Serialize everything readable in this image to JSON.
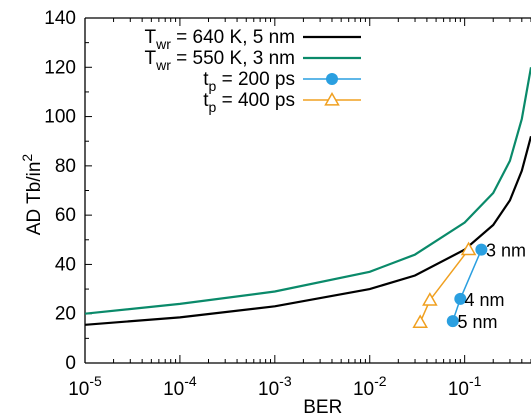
{
  "chart_data": {
    "type": "line",
    "title": "",
    "xlabel": "BER",
    "ylabel_main": "AD Tb/in",
    "ylabel_sup": "2",
    "x_scale": "log",
    "xlim": [
      1e-05,
      0.5
    ],
    "ylim": [
      0,
      140
    ],
    "grid": false,
    "legend_position": "top-left",
    "x_ticks": [
      {
        "value": 1e-05,
        "base": "10",
        "exp": "-5"
      },
      {
        "value": 0.0001,
        "base": "10",
        "exp": "-4"
      },
      {
        "value": 0.001,
        "base": "10",
        "exp": "-3"
      },
      {
        "value": 0.01,
        "base": "10",
        "exp": "-2"
      },
      {
        "value": 0.1,
        "base": "10",
        "exp": "-1"
      }
    ],
    "y_ticks": [
      0,
      20,
      40,
      60,
      80,
      100,
      120,
      140
    ],
    "series": [
      {
        "legend_main": "T",
        "legend_sub": "wr",
        "legend_rest": " = 640 K, 5 nm",
        "color": "#000000",
        "marker": "none",
        "x": [
          1e-05,
          0.0001,
          0.001,
          0.01,
          0.03,
          0.1,
          0.2,
          0.3,
          0.4,
          0.5
        ],
        "y": [
          15.5,
          18.5,
          23,
          30,
          35.5,
          46,
          56,
          66,
          78,
          92
        ]
      },
      {
        "legend_main": "T",
        "legend_sub": "wr",
        "legend_rest": " = 550 K, 3 nm",
        "color": "#0a8a6a",
        "marker": "none",
        "x": [
          1e-05,
          0.0001,
          0.001,
          0.01,
          0.03,
          0.1,
          0.2,
          0.3,
          0.4,
          0.5
        ],
        "y": [
          20,
          24,
          29,
          37,
          44,
          57,
          69,
          82,
          99,
          120
        ]
      },
      {
        "legend_main": "t",
        "legend_sub": "p",
        "legend_rest": " = 200 ps",
        "color": "#2a9fe0",
        "marker": "circle",
        "x": [
          0.075,
          0.09,
          0.15
        ],
        "y": [
          17,
          26,
          46
        ]
      },
      {
        "legend_main": "t",
        "legend_sub": "p",
        "legend_rest": " = 400 ps",
        "color": "#f0a020",
        "marker": "triangle",
        "x": [
          0.034,
          0.043,
          0.11
        ],
        "y": [
          16.5,
          25.5,
          46
        ]
      }
    ],
    "annotations": [
      {
        "text": "3 nm",
        "x": 0.16,
        "y": 46
      },
      {
        "text": "4 nm",
        "x": 0.095,
        "y": 26
      },
      {
        "text": "5 nm",
        "x": 0.08,
        "y": 17
      }
    ]
  }
}
